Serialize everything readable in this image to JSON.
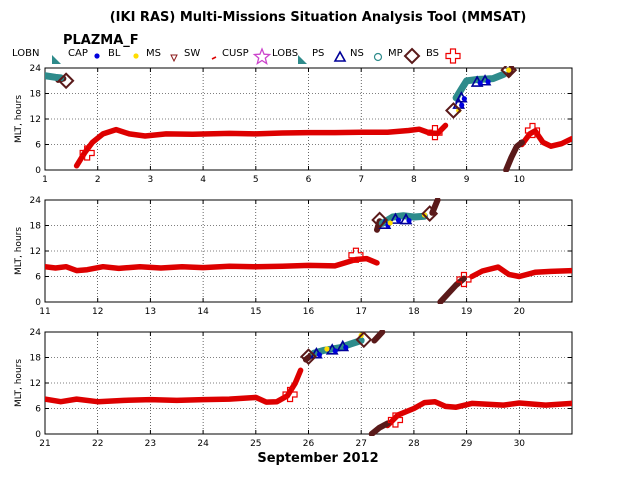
{
  "chart_data": {
    "type": "scatter",
    "title": "(IKI RAS) Multi-Missions Situation Analysis Tool (MMSAT)",
    "subtitle": "PLAZMA_F",
    "xlabel": "September 2012",
    "ylabel": "MLT, hours",
    "ylim": [
      0,
      24
    ],
    "yticks": [
      0,
      6,
      12,
      18,
      24
    ],
    "grid": true,
    "legend_position": "top",
    "legend": [
      {
        "label": "LOBN",
        "marker": "lobe-triangle",
        "color": "#2e8b8b"
      },
      {
        "label": "CAP",
        "marker": "dot",
        "color": "#0000dd"
      },
      {
        "label": "BL",
        "marker": "dot",
        "color": "#ffdd00"
      },
      {
        "label": "MS",
        "marker": "triangle-down",
        "color": "#8b1a1a"
      },
      {
        "label": "SW",
        "marker": "dash",
        "color": "#dd0000"
      },
      {
        "label": "CUSP",
        "marker": "star",
        "color": "#cc44cc"
      },
      {
        "label": "LOBS",
        "marker": "lobe-triangle",
        "color": "#2e8b8b"
      },
      {
        "label": "PS",
        "marker": "triangle",
        "color": "#000099"
      },
      {
        "label": "NS",
        "marker": "circle",
        "color": "#2e8b8b"
      },
      {
        "label": "MP",
        "marker": "diamond",
        "color": "#5a1a1a"
      },
      {
        "label": "BS",
        "marker": "cross",
        "color": "#ee0000"
      }
    ],
    "panels": [
      {
        "xlim": [
          1,
          11
        ],
        "xticks": [
          1,
          2,
          3,
          4,
          5,
          6,
          7,
          8,
          9,
          10
        ],
        "sw": [
          [
            1.6,
            1
          ],
          [
            1.75,
            4
          ],
          [
            1.9,
            6.5
          ],
          [
            2.1,
            8.5
          ],
          [
            2.35,
            9.5
          ],
          [
            2.6,
            8.5
          ],
          [
            2.9,
            8
          ],
          [
            3.3,
            8.5
          ],
          [
            3.8,
            8.4
          ],
          [
            4.5,
            8.6
          ],
          [
            5,
            8.5
          ],
          [
            5.5,
            8.7
          ],
          [
            6,
            8.8
          ],
          [
            6.5,
            8.8
          ],
          [
            7,
            8.9
          ],
          [
            7.5,
            8.9
          ],
          [
            7.9,
            9.3
          ],
          [
            8.1,
            9.6
          ],
          [
            8.3,
            8.7
          ],
          [
            8.45,
            8.6
          ],
          [
            8.6,
            10.5
          ]
        ],
        "sw2": [
          [
            10.05,
            6
          ],
          [
            10.2,
            8.5
          ],
          [
            10.3,
            9.2
          ],
          [
            10.45,
            6.5
          ],
          [
            10.6,
            5.6
          ],
          [
            10.8,
            6.2
          ],
          [
            11,
            7.4
          ]
        ],
        "ms": [
          [
            9.75,
            0
          ],
          [
            9.85,
            3
          ],
          [
            9.95,
            5.5
          ],
          [
            10.05,
            6.5
          ]
        ],
        "ms2": [
          [
            9.8,
            22.5
          ],
          [
            9.85,
            24
          ]
        ],
        "ms3": [
          [
            1.25,
            21.2
          ],
          [
            1.35,
            21.5
          ]
        ],
        "ns": [
          [
            1,
            22.2
          ],
          [
            1.2,
            21.8
          ],
          [
            1.3,
            21.7
          ]
        ],
        "ns2": [
          [
            8.8,
            17
          ],
          [
            8.9,
            19
          ],
          [
            9,
            21
          ],
          [
            9.2,
            21.3
          ],
          [
            9.5,
            21.5
          ],
          [
            9.7,
            22.5
          ]
        ],
        "ps": [
          [
            8.85,
            15.5
          ],
          [
            8.9,
            17
          ],
          [
            9.2,
            20.7
          ],
          [
            9.35,
            21
          ]
        ],
        "bl": [
          [
            8.85,
            14
          ],
          [
            9.8,
            23.5
          ]
        ],
        "mp": [
          [
            1.4,
            21
          ],
          [
            8.75,
            14
          ],
          [
            9.8,
            23.5
          ]
        ],
        "bs": [
          [
            1.8,
            4
          ],
          [
            8.4,
            8.8
          ],
          [
            10.25,
            9.3
          ]
        ]
      },
      {
        "xlim": [
          11,
          21
        ],
        "xticks": [
          11,
          12,
          13,
          14,
          15,
          16,
          17,
          18,
          19,
          20
        ],
        "sw": [
          [
            11,
            8.3
          ],
          [
            11.2,
            8
          ],
          [
            11.4,
            8.3
          ],
          [
            11.6,
            7.4
          ],
          [
            11.8,
            7.6
          ],
          [
            12.1,
            8.3
          ],
          [
            12.4,
            7.9
          ],
          [
            12.8,
            8.3
          ],
          [
            13.2,
            8
          ],
          [
            13.6,
            8.3
          ],
          [
            14,
            8.1
          ],
          [
            14.5,
            8.4
          ],
          [
            15,
            8.3
          ],
          [
            15.5,
            8.4
          ],
          [
            16,
            8.6
          ],
          [
            16.5,
            8.5
          ],
          [
            16.9,
            10
          ],
          [
            17.1,
            10.2
          ],
          [
            17.3,
            9.2
          ]
        ],
        "sw2": [
          [
            19.1,
            6
          ],
          [
            19.3,
            7.3
          ],
          [
            19.6,
            8.2
          ],
          [
            19.8,
            6.5
          ],
          [
            20,
            6
          ],
          [
            20.3,
            7
          ],
          [
            20.6,
            7.2
          ],
          [
            21,
            7.4
          ]
        ],
        "ms": [
          [
            18.5,
            0
          ],
          [
            18.65,
            2
          ],
          [
            18.8,
            4
          ],
          [
            18.95,
            5.5
          ]
        ],
        "ms2": [
          [
            17.3,
            17
          ],
          [
            17.35,
            19
          ]
        ],
        "ms3": [
          [
            18.35,
            21
          ],
          [
            18.45,
            24
          ]
        ],
        "ns": [
          [
            17.4,
            18.5
          ],
          [
            17.6,
            20
          ],
          [
            17.8,
            20.3
          ],
          [
            18,
            20
          ],
          [
            18.2,
            20.2
          ]
        ],
        "ns2": [],
        "ps": [
          [
            17.45,
            18.3
          ],
          [
            17.65,
            19.5
          ],
          [
            17.85,
            19.4
          ]
        ],
        "bl": [
          [
            17.55,
            18.6
          ],
          [
            18.2,
            20.5
          ]
        ],
        "mp": [
          [
            17.35,
            19.3
          ],
          [
            18.3,
            20.8
          ]
        ],
        "bs": [
          [
            16.9,
            11
          ],
          [
            18.95,
            5.3
          ]
        ]
      },
      {
        "xlim": [
          21,
          31
        ],
        "xticks": [
          21,
          22,
          23,
          24,
          25,
          26,
          27,
          28,
          29,
          30
        ],
        "sw": [
          [
            21,
            8.2
          ],
          [
            21.3,
            7.6
          ],
          [
            21.6,
            8.2
          ],
          [
            22,
            7.6
          ],
          [
            22.5,
            7.9
          ],
          [
            23,
            8.1
          ],
          [
            23.5,
            7.9
          ],
          [
            24,
            8.1
          ],
          [
            24.5,
            8.2
          ],
          [
            25,
            8.6
          ],
          [
            25.2,
            7.5
          ],
          [
            25.4,
            7.6
          ],
          [
            25.6,
            9
          ],
          [
            25.75,
            12
          ],
          [
            25.85,
            15
          ]
        ],
        "sw2": [
          [
            27.5,
            2
          ],
          [
            27.7,
            4.5
          ],
          [
            28,
            6
          ],
          [
            28.2,
            7.4
          ],
          [
            28.4,
            7.6
          ],
          [
            28.6,
            6.5
          ],
          [
            28.8,
            6.3
          ],
          [
            29.1,
            7.2
          ],
          [
            29.4,
            7
          ],
          [
            29.7,
            6.8
          ],
          [
            30,
            7.3
          ],
          [
            30.5,
            6.8
          ],
          [
            31,
            7.2
          ]
        ],
        "ms": [
          [
            27.2,
            0
          ],
          [
            27.35,
            1.5
          ],
          [
            27.5,
            2.5
          ]
        ],
        "ms2": [
          [
            27.25,
            22
          ],
          [
            27.4,
            24
          ]
        ],
        "ms3": [
          [
            25.95,
            17.5
          ],
          [
            26.05,
            18.5
          ]
        ],
        "ns": [
          [
            26.1,
            19
          ],
          [
            26.3,
            19.7
          ],
          [
            26.6,
            20.3
          ],
          [
            26.8,
            21.2
          ],
          [
            27,
            22
          ]
        ],
        "ns2": [],
        "ps": [
          [
            26.15,
            18.9
          ],
          [
            26.45,
            19.8
          ],
          [
            26.65,
            20.6
          ]
        ],
        "bl": [
          [
            26.35,
            20
          ],
          [
            27,
            23.2
          ]
        ],
        "mp": [
          [
            26,
            18.2
          ],
          [
            27.05,
            22.2
          ]
        ],
        "bs": [
          [
            25.65,
            9.3
          ],
          [
            27.65,
            3.3
          ]
        ]
      }
    ]
  }
}
